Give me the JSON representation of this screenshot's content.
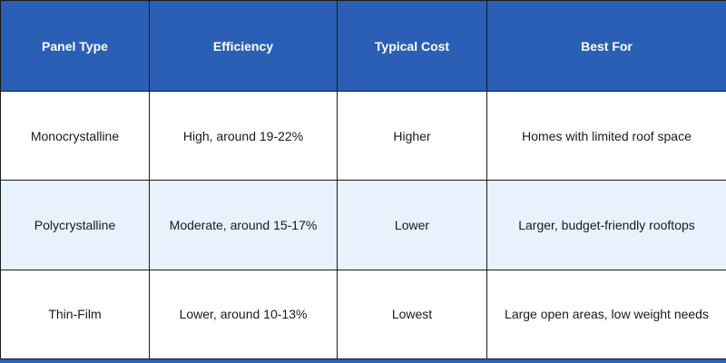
{
  "table": {
    "headers": [
      "Panel Type",
      "Efficiency",
      "Typical Cost",
      "Best For"
    ],
    "rows": [
      [
        "Monocrystalline",
        "High, around 19-22%",
        "Higher",
        "Homes with limited roof space"
      ],
      [
        "Polycrystalline",
        "Moderate, around 15-17%",
        "Lower",
        "Larger, budget-friendly rooftops"
      ],
      [
        "Thin-Film",
        "Lower, around 10-13%",
        "Lowest",
        "Large open areas, low weight needs"
      ]
    ]
  },
  "colors": {
    "header_bg": "#2a5fb5",
    "header_text": "#ffffff",
    "row_alt_bg": "#e8f2fd",
    "row_bg": "#ffffff",
    "border": "#1a1a1a"
  }
}
